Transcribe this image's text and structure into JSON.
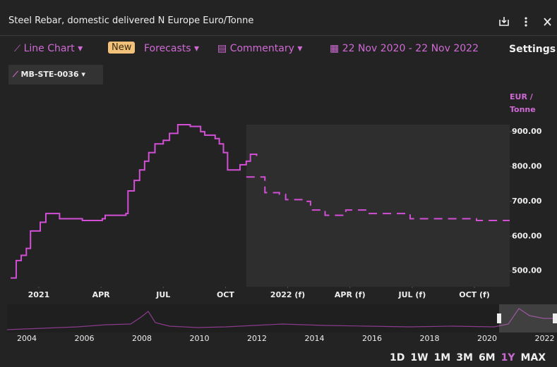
{
  "header": {
    "title": "Steel Rebar, domestic delivered N Europe Euro/Tonne"
  },
  "toolbar": {
    "chart_type": "Line Chart",
    "badge": "New",
    "forecasts": "Forecasts",
    "commentary": "Commentary",
    "date_range": "22 Nov 2020 - 22 Nov 2022",
    "settings": "Settings"
  },
  "chart_data": {
    "type": "line",
    "step": true,
    "y_unit_label": [
      "EUR /",
      "Tonne"
    ],
    "series": [
      {
        "name": "MB-STE-0036",
        "color": "#d24fd6",
        "x": [
          -1.36,
          -1.09,
          -0.85,
          -0.6,
          -0.4,
          0.07,
          0.34,
          1.0,
          2.1,
          3.06,
          3.2,
          4.2,
          4.3,
          4.6,
          4.86,
          5.1,
          5.3,
          5.6,
          6.0,
          6.3,
          6.7,
          7.3,
          7.8,
          8.0,
          8.5,
          8.7,
          8.9,
          9.1,
          9.5,
          9.7,
          10.0,
          10.2,
          10.5
        ],
        "values": [
          480,
          530,
          545,
          565,
          615,
          640,
          665,
          650,
          645,
          650,
          660,
          665,
          730,
          760,
          790,
          815,
          840,
          865,
          875,
          895,
          920,
          915,
          900,
          890,
          880,
          865,
          840,
          790,
          790,
          805,
          815,
          835,
          830
        ]
      },
      {
        "color": "#d24fd6",
        "dashed": true,
        "x": [
          10.0,
          10.9,
          11.6,
          11.9,
          12.8,
          13.1,
          13.8,
          14.8,
          15.8,
          17.9,
          21.1,
          22.7
        ],
        "values": [
          770,
          725,
          720,
          705,
          700,
          675,
          660,
          675,
          665,
          650,
          645,
          645
        ]
      }
    ],
    "xlim": [
      -1.36,
      22.7
    ],
    "ylim": [
      455,
      1015
    ],
    "xticks": [
      {
        "value": 0,
        "label": "2021"
      },
      {
        "value": 3,
        "label": "APR"
      },
      {
        "value": 6,
        "label": "JUL"
      },
      {
        "value": 9,
        "label": "OCT"
      },
      {
        "value": 12,
        "label": "2022 (f)"
      },
      {
        "value": 15,
        "label": "APR (f)"
      },
      {
        "value": 18,
        "label": "JUL (f)"
      },
      {
        "value": 21,
        "label": "OCT (f)"
      }
    ],
    "yticks": [
      {
        "value": 500,
        "label": "500.00"
      },
      {
        "value": 600,
        "label": "600.00"
      },
      {
        "value": 700,
        "label": "700.00"
      },
      {
        "value": 800,
        "label": "800.00"
      },
      {
        "value": 900,
        "label": "900.00"
      }
    ]
  },
  "navigator": {
    "labels": [
      "2004",
      "2006",
      "2008",
      "2010",
      "2012",
      "2014",
      "2016",
      "2018",
      "2020",
      "2022"
    ]
  },
  "ranges": {
    "buttons": [
      "1D",
      "1W",
      "1M",
      "3M",
      "6M",
      "1Y",
      "MAX"
    ],
    "active": "1Y"
  }
}
